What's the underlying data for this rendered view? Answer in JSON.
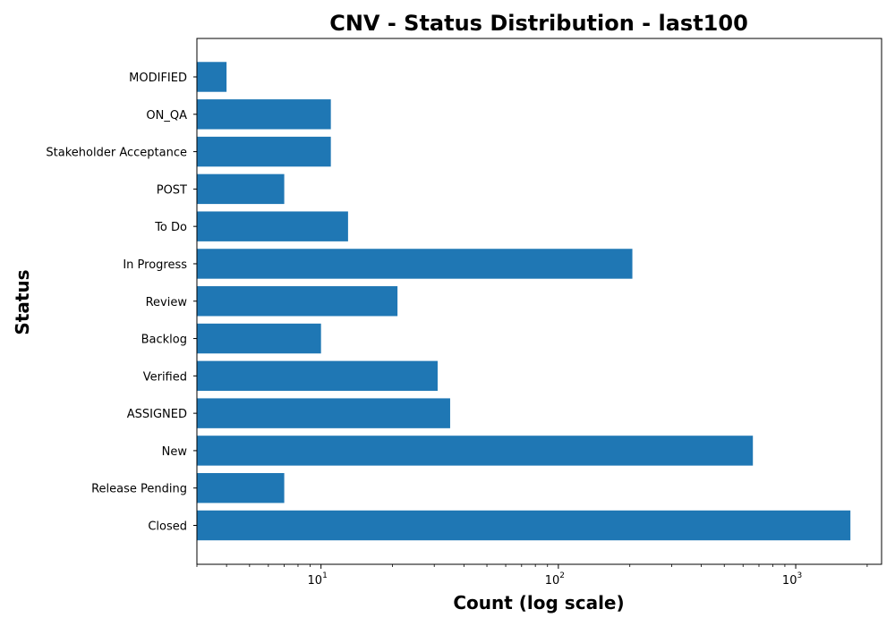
{
  "chart_data": {
    "type": "bar",
    "orientation": "horizontal",
    "title": "CNV - Status Distribution - last100",
    "xlabel": "Count (log scale)",
    "ylabel": "Status",
    "xscale": "log",
    "xlim": [
      3,
      2300
    ],
    "x_ticks": [
      {
        "base": "10",
        "exp": "1",
        "value": 10
      },
      {
        "base": "10",
        "exp": "2",
        "value": 100
      },
      {
        "base": "10",
        "exp": "3",
        "value": 1000
      }
    ],
    "bar_color": "#1f77b4",
    "grid": false,
    "categories": [
      "Closed",
      "Release Pending",
      "New",
      "ASSIGNED",
      "Verified",
      "Backlog",
      "Review",
      "In Progress",
      "To Do",
      "POST",
      "Stakeholder Acceptance",
      "ON_QA",
      "MODIFIED"
    ],
    "values": [
      1700,
      7,
      660,
      35,
      31,
      10,
      21,
      205,
      13,
      7,
      11,
      11,
      4
    ]
  }
}
